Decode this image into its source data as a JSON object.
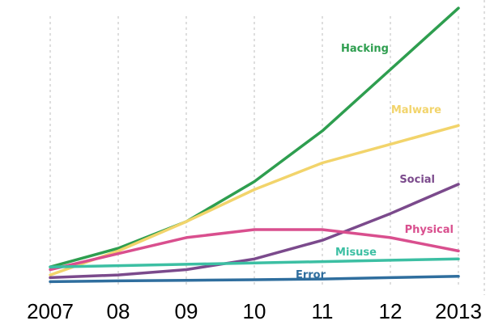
{
  "chart_data": {
    "type": "line",
    "title": "",
    "xlabel": "",
    "ylabel": "",
    "grid": "vertical-dashed",
    "legend": "inline-labels",
    "categories": [
      "2007",
      "08",
      "09",
      "10",
      "11",
      "12",
      "2013"
    ],
    "ylim": [
      0,
      100
    ],
    "series": [
      {
        "name": "Hacking",
        "color": "#2e9e4f",
        "values": [
          6,
          13,
          23,
          38,
          57,
          80,
          103
        ]
      },
      {
        "name": "Malware",
        "color": "#f2d46b",
        "values": [
          3,
          12,
          23,
          35,
          45,
          52,
          59
        ]
      },
      {
        "name": "Social",
        "color": "#7b4a8c",
        "values": [
          2,
          3,
          5,
          9,
          16,
          26,
          37
        ]
      },
      {
        "name": "Physical",
        "color": "#d94f8e",
        "values": [
          5,
          11,
          17,
          20,
          20,
          17,
          12
        ]
      },
      {
        "name": "Misuse",
        "color": "#3cbfa3",
        "values": [
          6,
          6.5,
          7,
          7.5,
          8,
          8.5,
          9
        ]
      },
      {
        "name": "Error",
        "color": "#2f6e9e",
        "values": [
          0.5,
          0.8,
          1,
          1.2,
          1.5,
          2,
          2.5
        ]
      }
    ]
  }
}
